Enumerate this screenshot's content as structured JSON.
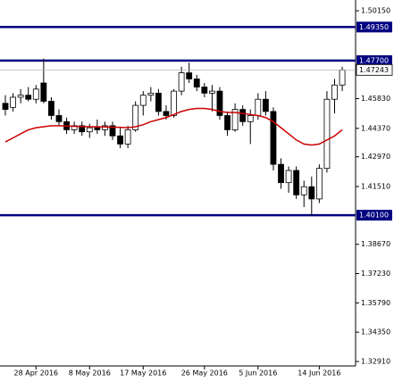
{
  "chart_data": {
    "type": "candlestick",
    "categories": [
      null,
      null,
      null,
      null,
      "28 Apr 2016",
      null,
      null,
      null,
      null,
      null,
      null,
      "8 May 2016",
      null,
      null,
      null,
      null,
      null,
      null,
      "17 May 2016",
      null,
      null,
      null,
      null,
      null,
      null,
      null,
      "26 May 2016",
      null,
      null,
      null,
      null,
      null,
      null,
      "5 Jun 2016",
      null,
      null,
      null,
      null,
      null,
      null,
      null,
      "14 Jun 2016",
      null,
      null,
      null
    ],
    "open": [
      1.456,
      1.454,
      1.459,
      1.46,
      1.458,
      1.466,
      1.457,
      1.45,
      1.447,
      1.443,
      1.445,
      1.442,
      1.444,
      1.443,
      1.445,
      1.44,
      1.436,
      1.443,
      1.455,
      1.46,
      1.461,
      1.452,
      1.45,
      1.462,
      1.471,
      1.468,
      1.464,
      1.461,
      1.462,
      1.45,
      1.443,
      1.453,
      1.447,
      1.45,
      1.458,
      1.452,
      1.426,
      1.417,
      1.423,
      1.411,
      1.415,
      1.409,
      1.424,
      1.458,
      1.465
    ],
    "high": [
      1.46,
      1.461,
      1.463,
      1.464,
      1.465,
      1.478,
      1.459,
      1.453,
      1.449,
      1.447,
      1.447,
      1.446,
      1.448,
      1.447,
      1.447,
      1.444,
      1.445,
      1.457,
      1.462,
      1.464,
      1.463,
      1.455,
      1.463,
      1.474,
      1.476,
      1.47,
      1.466,
      1.465,
      1.464,
      1.452,
      1.456,
      1.455,
      1.453,
      1.461,
      1.462,
      1.454,
      1.429,
      1.425,
      1.425,
      1.418,
      1.42,
      1.426,
      1.462,
      1.468,
      1.474
    ],
    "low": [
      1.45,
      1.452,
      1.456,
      1.457,
      1.456,
      1.456,
      1.448,
      1.445,
      1.441,
      1.441,
      1.44,
      1.439,
      1.441,
      1.44,
      1.438,
      1.434,
      1.434,
      1.442,
      1.45,
      1.457,
      1.45,
      1.448,
      1.449,
      1.46,
      1.466,
      1.462,
      1.459,
      1.452,
      1.448,
      1.44,
      1.442,
      1.445,
      1.436,
      1.448,
      1.45,
      1.423,
      1.414,
      1.412,
      1.409,
      1.405,
      1.401,
      1.407,
      1.422,
      1.451,
      1.462
    ],
    "close": [
      1.453,
      1.459,
      1.46,
      1.458,
      1.463,
      1.457,
      1.45,
      1.447,
      1.443,
      1.445,
      1.442,
      1.444,
      1.443,
      1.445,
      1.44,
      1.436,
      1.443,
      1.455,
      1.46,
      1.461,
      1.452,
      1.45,
      1.462,
      1.471,
      1.468,
      1.464,
      1.461,
      1.462,
      1.45,
      1.443,
      1.453,
      1.447,
      1.45,
      1.458,
      1.452,
      1.426,
      1.417,
      1.423,
      1.411,
      1.415,
      1.409,
      1.424,
      1.458,
      1.465,
      1.4724
    ],
    "moving_average": [
      1.437,
      1.439,
      1.441,
      1.443,
      1.444,
      1.4445,
      1.445,
      1.445,
      1.4448,
      1.4447,
      1.4446,
      1.4445,
      1.4445,
      1.4444,
      1.4443,
      1.4442,
      1.444,
      1.4445,
      1.4455,
      1.447,
      1.448,
      1.449,
      1.4505,
      1.452,
      1.453,
      1.4535,
      1.4535,
      1.453,
      1.452,
      1.4515,
      1.4515,
      1.451,
      1.4505,
      1.45,
      1.449,
      1.447,
      1.444,
      1.441,
      1.438,
      1.436,
      1.4355,
      1.436,
      1.438,
      1.44,
      1.443
    ],
    "up_color": "#ffffff",
    "down_color": "#000000",
    "ma_color": "#cc0000",
    "level_color": "#000080",
    "ylim": [
      1.3269,
      1.5068
    ],
    "yticks": [
      {
        "value": 1.5015,
        "label": "1.50150"
      },
      {
        "value": 1.4583,
        "label": "1.45830"
      },
      {
        "value": 1.4437,
        "label": "1.44370"
      },
      {
        "value": 1.4297,
        "label": "1.42970"
      },
      {
        "value": 1.4151,
        "label": "1.41510"
      },
      {
        "value": 1.3867,
        "label": "1.38670"
      },
      {
        "value": 1.3723,
        "label": "1.37230"
      },
      {
        "value": 1.3579,
        "label": "1.35790"
      },
      {
        "value": 1.3435,
        "label": "1.34350"
      },
      {
        "value": 1.3291,
        "label": "1.32910"
      }
    ],
    "levels": [
      {
        "value": 1.4935,
        "label": "1.49350"
      },
      {
        "value": 1.477,
        "label": "1.47700"
      },
      {
        "value": 1.401,
        "label": "1.40100"
      }
    ],
    "current_price": {
      "value": 1.47243,
      "label": "1.47243"
    }
  }
}
